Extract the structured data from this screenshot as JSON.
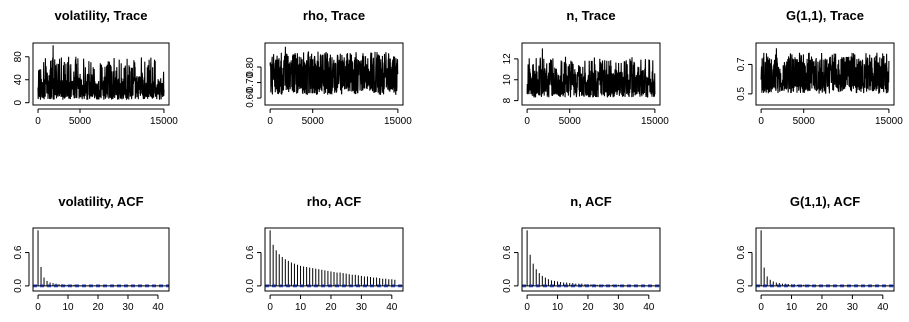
{
  "chart_data": [
    {
      "type": "line",
      "title": "volatility, Trace",
      "xlim": [
        0,
        15000
      ],
      "ylim": [
        0,
        100
      ],
      "xticks": [
        0,
        5000,
        15000
      ],
      "xtick_labels": [
        "0",
        "5000",
        "15000"
      ],
      "yticks": [
        0,
        40,
        80
      ],
      "ytick_labels": [
        "0",
        "40",
        "80"
      ],
      "series": [
        {
          "n": 15000,
          "center": 28,
          "low": 5,
          "high": 80,
          "spike": 100
        }
      ]
    },
    {
      "type": "line",
      "title": "rho, Trace",
      "xlim": [
        0,
        15000
      ],
      "ylim": [
        0.57,
        0.94
      ],
      "xticks": [
        0,
        5000,
        15000
      ],
      "xtick_labels": [
        "0",
        "5000",
        "15000"
      ],
      "yticks": [
        0.6,
        0.7,
        0.8
      ],
      "ytick_labels": [
        "0.60",
        "0.70",
        "0.80"
      ],
      "series": [
        {
          "n": 15000,
          "center": 0.77,
          "low": 0.62,
          "high": 0.9,
          "spike": 0.93
        }
      ]
    },
    {
      "type": "line",
      "title": "n, Trace",
      "xlim": [
        0,
        15000
      ],
      "ylim": [
        7.8,
        13.3
      ],
      "xticks": [
        0,
        5000,
        15000
      ],
      "xtick_labels": [
        "0",
        "5000",
        "15000"
      ],
      "yticks": [
        8,
        10,
        12
      ],
      "ytick_labels": [
        "8",
        "10",
        "12"
      ],
      "series": [
        {
          "n": 15000,
          "center": 9.8,
          "low": 8.3,
          "high": 12.2,
          "spike": 13
        }
      ]
    },
    {
      "type": "line",
      "title": "G(1,1), Trace",
      "xlim": [
        0,
        15000
      ],
      "ylim": [
        0.44,
        0.83
      ],
      "xticks": [
        0,
        5000,
        15000
      ],
      "xtick_labels": [
        "0",
        "5000",
        "15000"
      ],
      "yticks": [
        0.5,
        0.7
      ],
      "ytick_labels": [
        "0.5",
        "0.7"
      ],
      "series": [
        {
          "n": 15000,
          "center": 0.64,
          "low": 0.5,
          "high": 0.78,
          "spike": 0.81
        }
      ]
    },
    {
      "type": "bar",
      "title": "volatility, ACF",
      "xlim": [
        0,
        42
      ],
      "ylim": [
        -0.05,
        1.0
      ],
      "xticks": [
        0,
        10,
        20,
        30,
        40
      ],
      "xtick_labels": [
        "0",
        "10",
        "20",
        "30",
        "40"
      ],
      "yticks": [
        0,
        0.6
      ],
      "ytick_labels": [
        "0.0",
        "0.6"
      ],
      "ci": 0.016,
      "lags": [
        0,
        1,
        2,
        3,
        4,
        5,
        6,
        7,
        8,
        9,
        10,
        11,
        12,
        13,
        14,
        15,
        16,
        17,
        18,
        19,
        20,
        21,
        22,
        23,
        24,
        25,
        26,
        27,
        28,
        29,
        30,
        31,
        32,
        33,
        34,
        35,
        36,
        37,
        38,
        39,
        40,
        41
      ],
      "values": [
        1.0,
        0.34,
        0.15,
        0.09,
        0.06,
        0.05,
        0.04,
        0.03,
        0.03,
        0.02,
        0.02,
        0.02,
        0.02,
        0.02,
        0.01,
        0.01,
        0.01,
        0.01,
        0.01,
        0.01,
        0.01,
        0.01,
        0.01,
        0.01,
        0.01,
        0.01,
        0.01,
        0.01,
        0.01,
        0.01,
        0.01,
        0.01,
        0.01,
        0.01,
        0.01,
        0.01,
        0.01,
        0.01,
        0.01,
        0.01,
        0.01,
        0.01
      ]
    },
    {
      "type": "bar",
      "title": "rho, ACF",
      "xlim": [
        0,
        42
      ],
      "ylim": [
        -0.05,
        1.0
      ],
      "xticks": [
        0,
        10,
        20,
        30,
        40
      ],
      "xtick_labels": [
        "0",
        "10",
        "20",
        "30",
        "40"
      ],
      "yticks": [
        0,
        0.6
      ],
      "ytick_labels": [
        "0.0",
        "0.6"
      ],
      "ci": 0.016,
      "lags": [
        0,
        1,
        2,
        3,
        4,
        5,
        6,
        7,
        8,
        9,
        10,
        11,
        12,
        13,
        14,
        15,
        16,
        17,
        18,
        19,
        20,
        21,
        22,
        23,
        24,
        25,
        26,
        27,
        28,
        29,
        30,
        31,
        32,
        33,
        34,
        35,
        36,
        37,
        38,
        39,
        40,
        41
      ],
      "values": [
        1.0,
        0.74,
        0.64,
        0.57,
        0.52,
        0.48,
        0.45,
        0.42,
        0.4,
        0.38,
        0.36,
        0.35,
        0.34,
        0.33,
        0.32,
        0.31,
        0.3,
        0.29,
        0.28,
        0.27,
        0.26,
        0.25,
        0.24,
        0.24,
        0.23,
        0.22,
        0.21,
        0.2,
        0.2,
        0.19,
        0.18,
        0.17,
        0.17,
        0.16,
        0.15,
        0.15,
        0.14,
        0.13,
        0.13,
        0.12,
        0.12,
        0.11
      ]
    },
    {
      "type": "bar",
      "title": "n, ACF",
      "xlim": [
        0,
        42
      ],
      "ylim": [
        -0.05,
        1.0
      ],
      "xticks": [
        0,
        10,
        20,
        30,
        40
      ],
      "xtick_labels": [
        "0",
        "10",
        "20",
        "30",
        "40"
      ],
      "yticks": [
        0,
        0.6
      ],
      "ytick_labels": [
        "0.0",
        "0.6"
      ],
      "ci": 0.016,
      "lags": [
        0,
        1,
        2,
        3,
        4,
        5,
        6,
        7,
        8,
        9,
        10,
        11,
        12,
        13,
        14,
        15,
        16,
        17,
        18,
        19,
        20,
        21,
        22,
        23,
        24,
        25,
        26,
        27,
        28,
        29,
        30,
        31,
        32,
        33,
        34,
        35,
        36,
        37,
        38,
        39,
        40,
        41
      ],
      "values": [
        1.0,
        0.56,
        0.4,
        0.3,
        0.23,
        0.18,
        0.15,
        0.12,
        0.1,
        0.09,
        0.08,
        0.07,
        0.06,
        0.06,
        0.05,
        0.05,
        0.04,
        0.04,
        0.04,
        0.03,
        0.03,
        0.03,
        0.03,
        0.02,
        0.02,
        0.02,
        0.02,
        0.02,
        0.02,
        0.02,
        0.02,
        0.02,
        0.01,
        0.01,
        0.01,
        0.01,
        0.01,
        0.01,
        0.01,
        0.01,
        0.01,
        0.01
      ]
    },
    {
      "type": "bar",
      "title": "G(1,1), ACF",
      "xlim": [
        0,
        42
      ],
      "ylim": [
        -0.05,
        1.0
      ],
      "xticks": [
        0,
        10,
        20,
        30,
        40
      ],
      "xtick_labels": [
        "0",
        "10",
        "20",
        "30",
        "40"
      ],
      "yticks": [
        0,
        0.6
      ],
      "ytick_labels": [
        "0.0",
        "0.6"
      ],
      "ci": 0.016,
      "lags": [
        0,
        1,
        2,
        3,
        4,
        5,
        6,
        7,
        8,
        9,
        10,
        11,
        12,
        13,
        14,
        15,
        16,
        17,
        18,
        19,
        20,
        21,
        22,
        23,
        24,
        25,
        26,
        27,
        28,
        29,
        30,
        31,
        32,
        33,
        34,
        35,
        36,
        37,
        38,
        39,
        40,
        41
      ],
      "values": [
        1.0,
        0.33,
        0.17,
        0.11,
        0.08,
        0.06,
        0.05,
        0.04,
        0.04,
        0.03,
        0.03,
        0.03,
        0.02,
        0.02,
        0.02,
        0.02,
        0.02,
        0.02,
        0.01,
        0.01,
        0.01,
        0.01,
        0.01,
        0.01,
        0.01,
        0.01,
        0.01,
        0.01,
        0.01,
        0.01,
        0.01,
        0.01,
        0.01,
        0.01,
        0.01,
        0.01,
        0.01,
        0.01,
        0.01,
        0.01,
        0.01,
        0.01
      ]
    }
  ],
  "colors": {
    "ink": "#000000",
    "ci_line": "#1f3fbf",
    "background": "#ffffff"
  }
}
